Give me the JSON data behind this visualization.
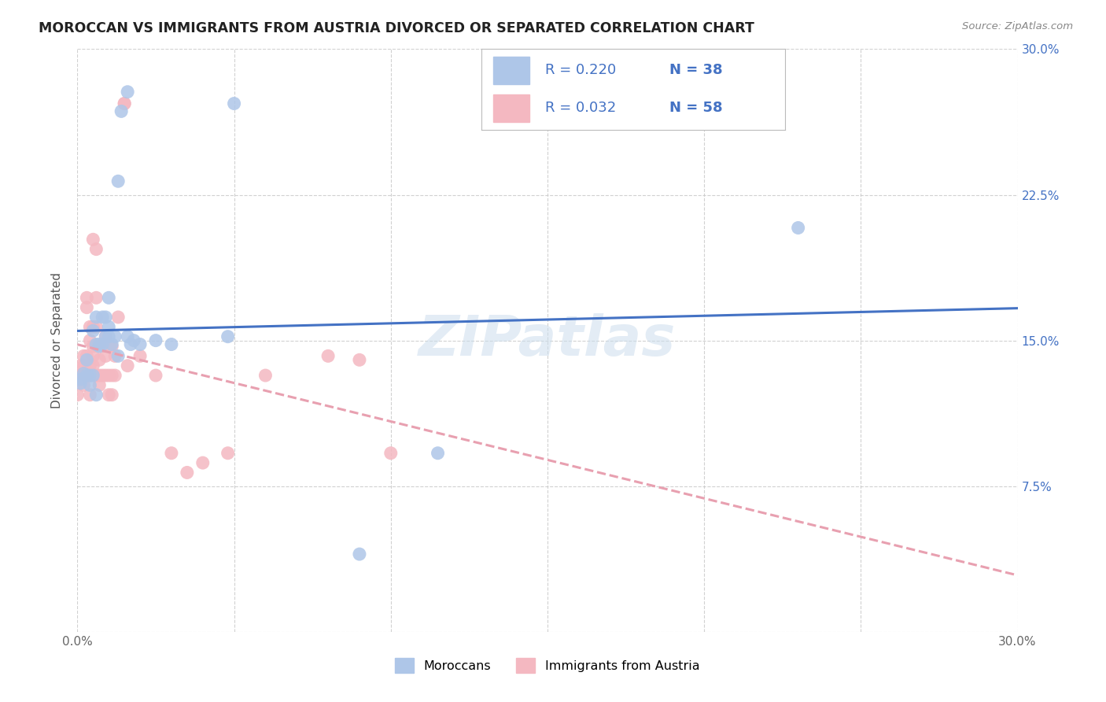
{
  "title": "MOROCCAN VS IMMIGRANTS FROM AUSTRIA DIVORCED OR SEPARATED CORRELATION CHART",
  "source": "Source: ZipAtlas.com",
  "ylabel": "Divorced or Separated",
  "x_min": 0.0,
  "x_max": 0.3,
  "y_min": 0.0,
  "y_max": 0.3,
  "x_ticks": [
    0.0,
    0.05,
    0.1,
    0.15,
    0.2,
    0.25,
    0.3
  ],
  "x_tick_labels": [
    "0.0%",
    "",
    "",
    "",
    "",
    "",
    "30.0%"
  ],
  "y_ticks": [
    0.0,
    0.075,
    0.15,
    0.225,
    0.3
  ],
  "y_tick_labels": [
    "",
    "7.5%",
    "15.0%",
    "22.5%",
    "30.0%"
  ],
  "legend_R_moroccan": "R = 0.220",
  "legend_N_moroccan": "N = 38",
  "legend_R_austria": "R = 0.032",
  "legend_N_austria": "N = 58",
  "color_moroccan": "#aec6e8",
  "color_austria": "#f4b8c1",
  "color_line_moroccan": "#4472c4",
  "color_line_austria": "#e8a0b0",
  "color_legend_text": "#4472c4",
  "watermark": "ZIPatlas",
  "moroccan_x": [
    0.001,
    0.001,
    0.002,
    0.003,
    0.003,
    0.004,
    0.004,
    0.005,
    0.005,
    0.006,
    0.006,
    0.006,
    0.007,
    0.007,
    0.008,
    0.008,
    0.009,
    0.009,
    0.01,
    0.01,
    0.01,
    0.011,
    0.012,
    0.013,
    0.013,
    0.014,
    0.016,
    0.016,
    0.017,
    0.018,
    0.02,
    0.025,
    0.03,
    0.048,
    0.05,
    0.115,
    0.23,
    0.09
  ],
  "moroccan_y": [
    0.13,
    0.128,
    0.133,
    0.14,
    0.132,
    0.132,
    0.127,
    0.155,
    0.132,
    0.122,
    0.148,
    0.162,
    0.147,
    0.148,
    0.148,
    0.162,
    0.162,
    0.152,
    0.172,
    0.157,
    0.152,
    0.148,
    0.152,
    0.142,
    0.232,
    0.268,
    0.278,
    0.152,
    0.148,
    0.15,
    0.148,
    0.15,
    0.148,
    0.152,
    0.272,
    0.092,
    0.208,
    0.04
  ],
  "austria_x": [
    0.0,
    0.0,
    0.001,
    0.001,
    0.001,
    0.002,
    0.002,
    0.002,
    0.002,
    0.003,
    0.003,
    0.003,
    0.003,
    0.004,
    0.004,
    0.004,
    0.004,
    0.004,
    0.005,
    0.005,
    0.005,
    0.005,
    0.005,
    0.006,
    0.006,
    0.006,
    0.006,
    0.007,
    0.007,
    0.007,
    0.007,
    0.008,
    0.008,
    0.009,
    0.009,
    0.009,
    0.01,
    0.01,
    0.01,
    0.011,
    0.011,
    0.011,
    0.012,
    0.012,
    0.013,
    0.015,
    0.015,
    0.016,
    0.02,
    0.025,
    0.03,
    0.035,
    0.04,
    0.048,
    0.06,
    0.08,
    0.09,
    0.1
  ],
  "austria_y": [
    0.132,
    0.122,
    0.137,
    0.132,
    0.13,
    0.137,
    0.132,
    0.142,
    0.127,
    0.142,
    0.132,
    0.172,
    0.167,
    0.157,
    0.15,
    0.137,
    0.132,
    0.122,
    0.202,
    0.157,
    0.147,
    0.142,
    0.137,
    0.197,
    0.172,
    0.157,
    0.132,
    0.147,
    0.14,
    0.132,
    0.127,
    0.147,
    0.132,
    0.152,
    0.142,
    0.132,
    0.147,
    0.132,
    0.122,
    0.147,
    0.132,
    0.122,
    0.142,
    0.132,
    0.162,
    0.272,
    0.272,
    0.137,
    0.142,
    0.132,
    0.092,
    0.082,
    0.087,
    0.092,
    0.132,
    0.142,
    0.14,
    0.092
  ]
}
